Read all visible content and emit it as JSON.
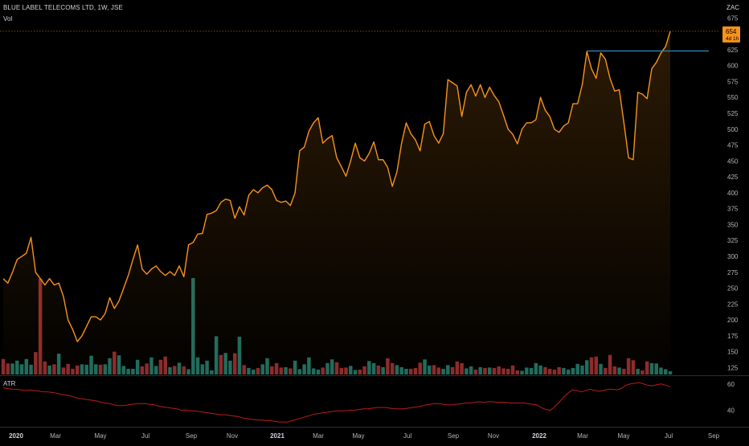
{
  "header": {
    "symbol": "BLUE LABEL TELECOMS LTD, 1W, JSE",
    "volume_label": "Vol",
    "atr_label": "ATR",
    "currency": "ZAC"
  },
  "colors": {
    "background": "#000000",
    "price_line": "#f7931a",
    "resistance_line": "#2a7fb8",
    "last_price_bg": "#f7931a",
    "vol_up": "#1e6b5e",
    "vol_down": "#8b2b2b",
    "atr_line": "#b71c1c",
    "axis_text": "#b2b5be",
    "separator": "#2a2e39"
  },
  "chart_data": [
    {
      "type": "area",
      "title": "BLUE LABEL TELECOMS LTD, 1W, JSE",
      "x_tick_labels": [
        "2020",
        "Mar",
        "May",
        "Jul",
        "Sep",
        "Nov",
        "2021",
        "Mar",
        "May",
        "Jul",
        "Sep",
        "Nov",
        "2022",
        "Mar",
        "May",
        "Jul",
        "Sep"
      ],
      "y_ticks": [
        125,
        150,
        175,
        200,
        225,
        250,
        275,
        300,
        325,
        350,
        375,
        400,
        425,
        450,
        475,
        500,
        525,
        550,
        575,
        600,
        625,
        650,
        675
      ],
      "ylim": [
        113,
        688
      ],
      "last_price": 654,
      "last_price_label": "654",
      "last_price_sublabel": "4d 1h",
      "resistance_level": 623,
      "series": [
        {
          "values": [
            265,
            258,
            275,
            295,
            300,
            305,
            330,
            275,
            265,
            255,
            265,
            255,
            258,
            237,
            200,
            185,
            166,
            175,
            190,
            205,
            205,
            200,
            210,
            235,
            218,
            230,
            250,
            270,
            295,
            318,
            280,
            272,
            280,
            285,
            276,
            270,
            276,
            270,
            285,
            268,
            318,
            322,
            335,
            336,
            366,
            368,
            372,
            385,
            390,
            388,
            360,
            378,
            365,
            396,
            405,
            400,
            408,
            412,
            405,
            388,
            385,
            387,
            380,
            400,
            466,
            472,
            497,
            510,
            518,
            478,
            485,
            490,
            455,
            441,
            426,
            450,
            478,
            455,
            450,
            462,
            480,
            452,
            452,
            440,
            410,
            433,
            478,
            510,
            493,
            483,
            466,
            508,
            512,
            490,
            478,
            493,
            578,
            573,
            568,
            520,
            558,
            570,
            552,
            570,
            550,
            566,
            553,
            543,
            522,
            500,
            492,
            477,
            500,
            510,
            510,
            515,
            550,
            530,
            520,
            500,
            495,
            505,
            510,
            540,
            540,
            570,
            622,
            595,
            580,
            620,
            610,
            580,
            560,
            562,
            510,
            455,
            452,
            558,
            555,
            548,
            595,
            605,
            620,
            630,
            654
          ]
        }
      ]
    },
    {
      "type": "bar",
      "title": "Vol",
      "series": [
        {
          "name": "Vol",
          "values": [
            38,
            27,
            27,
            34,
            25,
            38,
            24,
            55,
            235,
            32,
            22,
            25,
            51,
            17,
            26,
            14,
            22,
            25,
            24,
            46,
            25,
            24,
            25,
            40,
            56,
            47,
            21,
            14,
            14,
            36,
            20,
            27,
            42,
            21,
            36,
            44,
            18,
            21,
            29,
            20,
            13,
            237,
            42,
            25,
            34,
            10,
            94,
            48,
            53,
            34,
            52,
            93,
            23,
            16,
            12,
            16,
            25,
            40,
            20,
            28,
            17,
            18,
            15,
            34,
            13,
            25,
            42,
            15,
            12,
            17,
            28,
            37,
            30,
            16,
            17,
            21,
            11,
            12,
            20,
            33,
            28,
            22,
            18,
            40,
            28,
            23,
            18,
            14,
            14,
            16,
            29,
            37,
            22,
            23,
            17,
            14,
            23,
            18,
            32,
            28,
            15,
            20,
            12,
            18,
            16,
            17,
            16,
            20,
            15,
            14,
            22,
            10,
            9,
            17,
            16,
            28,
            22,
            18,
            14,
            12,
            18,
            16,
            12,
            16,
            26,
            22,
            35,
            42,
            44,
            26,
            16,
            48,
            20,
            17,
            14,
            40,
            35,
            14,
            10,
            32,
            28,
            27,
            17,
            13,
            8
          ],
          "direction": [
            -1,
            -1,
            1,
            1,
            1,
            1,
            1,
            -1,
            -1,
            -1,
            1,
            -1,
            1,
            -1,
            -1,
            -1,
            -1,
            1,
            1,
            1,
            1,
            -1,
            1,
            1,
            -1,
            1,
            1,
            1,
            1,
            1,
            -1,
            -1,
            1,
            1,
            -1,
            -1,
            1,
            -1,
            1,
            -1,
            1,
            1,
            1,
            1,
            1,
            1,
            1,
            -1,
            1,
            1,
            -1,
            1,
            -1,
            1,
            1,
            -1,
            1,
            1,
            -1,
            -1,
            -1,
            1,
            -1,
            1,
            1,
            1,
            1,
            1,
            1,
            -1,
            1,
            1,
            -1,
            -1,
            -1,
            1,
            1,
            -1,
            -1,
            1,
            1,
            -1,
            1,
            -1,
            -1,
            1,
            1,
            1,
            -1,
            -1,
            -1,
            1,
            1,
            -1,
            -1,
            1,
            1,
            -1,
            -1,
            -1,
            1,
            1,
            -1,
            1,
            -1,
            1,
            -1,
            -1,
            -1,
            -1,
            -1,
            -1,
            1,
            1,
            1,
            1,
            1,
            -1,
            -1,
            -1,
            -1,
            1,
            1,
            1,
            1,
            1,
            1,
            -1,
            -1,
            1,
            -1,
            -1,
            -1,
            1,
            -1,
            -1,
            -1,
            1,
            -1,
            -1,
            1,
            1,
            1,
            1,
            1
          ]
        }
      ]
    },
    {
      "type": "line",
      "title": "ATR",
      "y_ticks": [
        40,
        60
      ],
      "ylim": [
        28,
        66
      ],
      "series": [
        {
          "name": "ATR",
          "values": [
            57,
            56.5,
            56,
            56,
            55.5,
            55,
            55.5,
            55,
            54.5,
            54,
            54,
            53.5,
            53,
            52,
            51.5,
            51,
            50,
            49,
            48.5,
            48,
            47.5,
            47,
            46,
            45.5,
            45,
            44,
            43.5,
            43.5,
            44,
            44.5,
            45,
            45,
            45,
            44.5,
            44,
            43,
            42.5,
            42,
            41.5,
            41,
            40,
            40,
            39.5,
            39.5,
            39,
            38.5,
            38,
            37.5,
            37,
            36.5,
            36.5,
            36,
            35.5,
            35,
            34,
            33.5,
            33,
            32.5,
            32.5,
            32,
            32,
            31.5,
            31,
            31,
            31,
            32,
            33,
            34,
            35,
            36,
            37,
            37.5,
            38,
            38.5,
            39,
            39.5,
            39.5,
            39.5,
            40,
            40,
            40.5,
            41,
            41,
            41.5,
            42,
            42,
            42,
            41.5,
            41,
            41,
            41,
            41.5,
            42,
            42.5,
            43,
            44,
            44.5,
            45,
            45,
            44.5,
            44,
            44,
            44.5,
            45,
            45.5,
            45.5,
            46,
            46.5,
            46,
            46.5,
            46.5,
            46,
            46,
            46,
            45.5,
            45.5,
            45.5,
            45.5,
            45,
            44.5,
            44,
            42,
            40.5,
            40,
            42.5,
            46,
            50,
            53,
            55.5,
            55,
            54,
            55,
            56,
            55,
            54.5,
            55,
            56,
            56,
            55.5,
            56.5,
            59,
            60,
            60.5,
            61,
            60,
            59,
            58.5,
            59.5,
            60,
            59,
            58
          ]
        }
      ]
    }
  ]
}
